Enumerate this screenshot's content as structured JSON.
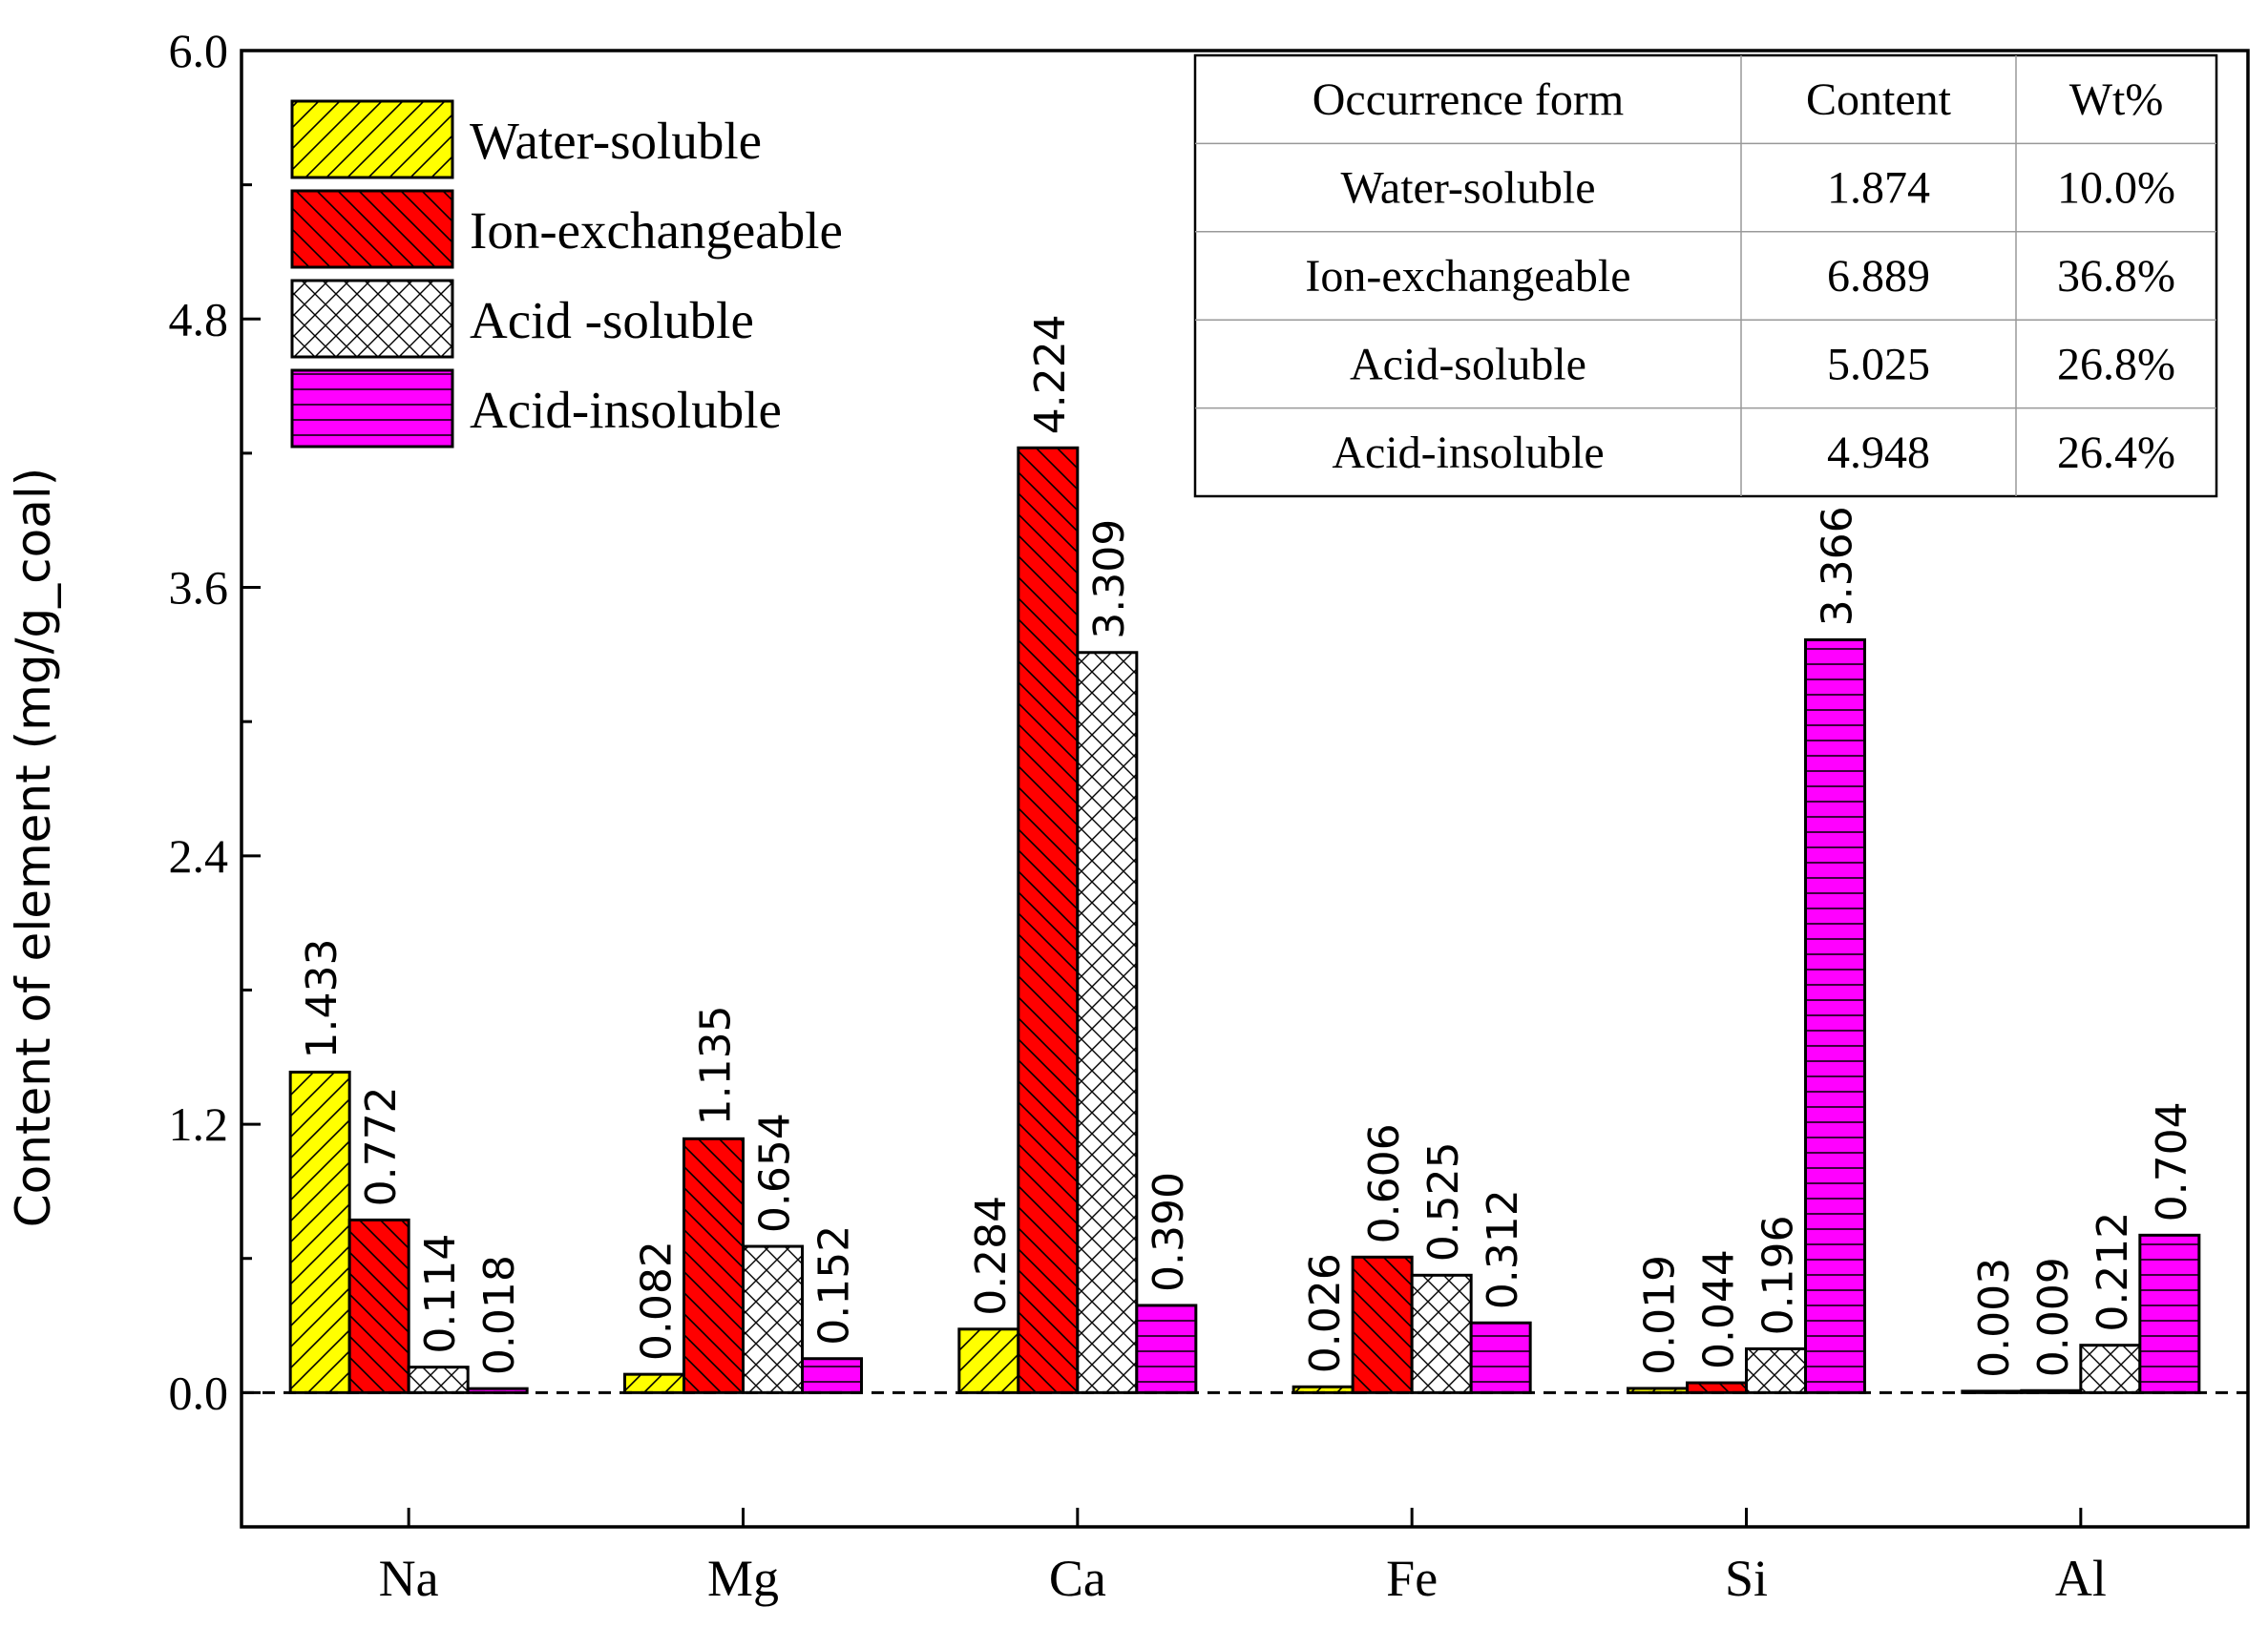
{
  "chart_data": {
    "type": "bar",
    "title": "",
    "xlabel": "",
    "ylabel": "Content of element  (mg/g_coal)",
    "ylim": [
      -0.6,
      6.0
    ],
    "yticks": [
      "0.0",
      "1.2",
      "2.4",
      "3.6",
      "4.8",
      "6.0"
    ],
    "ytick_values": [
      0.0,
      1.2,
      2.4,
      3.6,
      4.8,
      6.0
    ],
    "categories": [
      "Na",
      "Mg",
      "Ca",
      "Fe",
      "Si",
      "Al"
    ],
    "series": [
      {
        "name": "Water-soluble",
        "color": "#ffff00",
        "pattern": "diag-up",
        "values": [
          1.433,
          0.082,
          0.284,
          0.026,
          0.019,
          0.003
        ],
        "labels": [
          "1.433",
          "0.082",
          "0.284",
          "0.026",
          "0.019",
          "0.003"
        ]
      },
      {
        "name": "Ion-exchangeable",
        "color": "#ff0000",
        "pattern": "diag-down",
        "values": [
          0.772,
          1.135,
          4.224,
          0.606,
          0.044,
          0.009
        ],
        "labels": [
          "0.772",
          "1.135",
          "4.224",
          "0.606",
          "0.044",
          "0.009"
        ]
      },
      {
        "name": "Acid -soluble",
        "color": "#ffffff",
        "pattern": "crosshatch",
        "values": [
          0.114,
          0.654,
          3.309,
          0.525,
          0.196,
          0.212
        ],
        "labels": [
          "0.114",
          "0.654",
          "3.309",
          "0.525",
          "0.196",
          "0.212"
        ]
      },
      {
        "name": "Acid-insoluble",
        "color": "#ff00ff",
        "pattern": "horizontal",
        "values": [
          0.018,
          0.152,
          0.39,
          0.312,
          3.366,
          0.704
        ],
        "labels": [
          "0.018",
          "0.152",
          "0.390",
          "0.312",
          "3.366",
          "0.704"
        ]
      }
    ],
    "zero_line": "dashed",
    "legend_position": "top-left",
    "inset_table": {
      "position": "top-right",
      "headers": [
        "Occurrence form",
        "Content",
        "Wt%"
      ],
      "rows": [
        [
          "Water-soluble",
          "1.874",
          "10.0%"
        ],
        [
          "Ion-exchangeable",
          "6.889",
          "36.8%"
        ],
        [
          "Acid-soluble",
          "5.025",
          "26.8%"
        ],
        [
          "Acid-insoluble",
          "4.948",
          "26.4%"
        ]
      ]
    }
  }
}
